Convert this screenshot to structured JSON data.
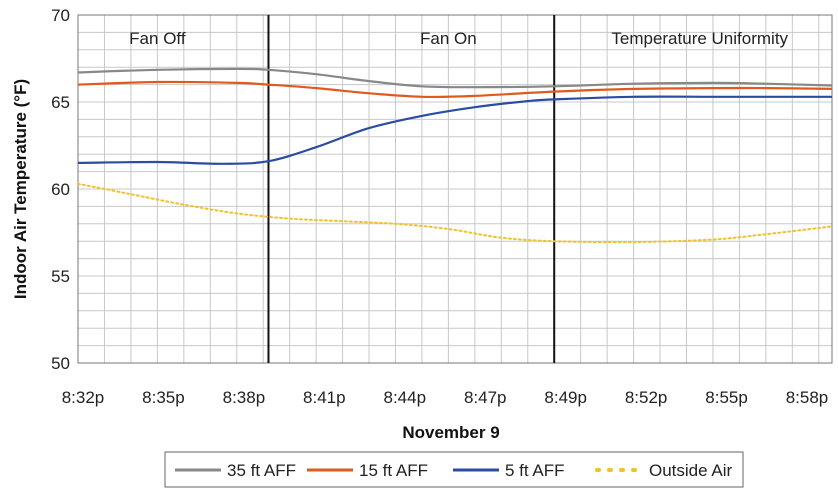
{
  "chart_data": {
    "type": "line",
    "ylabel": "Indoor Air Temperature (°F)",
    "xlabel": "November 9",
    "ylim": [
      50,
      70
    ],
    "yticks": [
      "50",
      "55",
      "60",
      "65",
      "70"
    ],
    "xlim": [
      0,
      28.5
    ],
    "xtick_labels": [
      "8:32p",
      "8:35p",
      "8:38p",
      "8:41p",
      "8:44p",
      "8:47p",
      "8:49p",
      "8:52p",
      "8:55p",
      "8:58p"
    ],
    "grid": true,
    "phase_boundaries": [
      7.2,
      18.0
    ],
    "phases": [
      {
        "label": "Fan Off",
        "x": 3.0
      },
      {
        "label": "Fan On",
        "x": 14.0
      },
      {
        "label": "Temperature Uniformity",
        "x": 23.5
      }
    ],
    "series": [
      {
        "name": "35 ft AFF",
        "color": "#888888",
        "style": "solid",
        "x": [
          0,
          3,
          6,
          7.2,
          9,
          11,
          13,
          15,
          18,
          21,
          24,
          26,
          28.5
        ],
        "y": [
          66.7,
          66.85,
          66.9,
          66.85,
          66.6,
          66.2,
          65.9,
          65.85,
          65.9,
          66.05,
          66.1,
          66.05,
          65.95
        ]
      },
      {
        "name": "15 ft AFF",
        "color": "#e05a1e",
        "style": "solid",
        "x": [
          0,
          3,
          6,
          7.2,
          9,
          11,
          13,
          15,
          18,
          21,
          24,
          26,
          28.5
        ],
        "y": [
          66.0,
          66.15,
          66.1,
          66.0,
          65.8,
          65.5,
          65.3,
          65.35,
          65.6,
          65.75,
          65.8,
          65.8,
          65.75
        ]
      },
      {
        "name": "5 ft AFF",
        "color": "#2a4da3",
        "style": "solid",
        "x": [
          0,
          3,
          5.5,
          7.2,
          9,
          11,
          13,
          15,
          17,
          18,
          21,
          24,
          26,
          28.5
        ],
        "y": [
          61.5,
          61.55,
          61.45,
          61.6,
          62.4,
          63.5,
          64.2,
          64.7,
          65.05,
          65.15,
          65.3,
          65.3,
          65.3,
          65.3
        ]
      },
      {
        "name": "Outside Air",
        "color": "#f2c12e",
        "style": "dotted",
        "x": [
          0,
          2,
          4,
          6,
          8,
          10,
          12,
          14,
          16,
          18,
          21,
          24,
          26,
          28.5
        ],
        "y": [
          60.3,
          59.7,
          59.1,
          58.6,
          58.3,
          58.15,
          58.0,
          57.7,
          57.2,
          57.0,
          56.95,
          57.1,
          57.4,
          57.85
        ]
      }
    ]
  }
}
